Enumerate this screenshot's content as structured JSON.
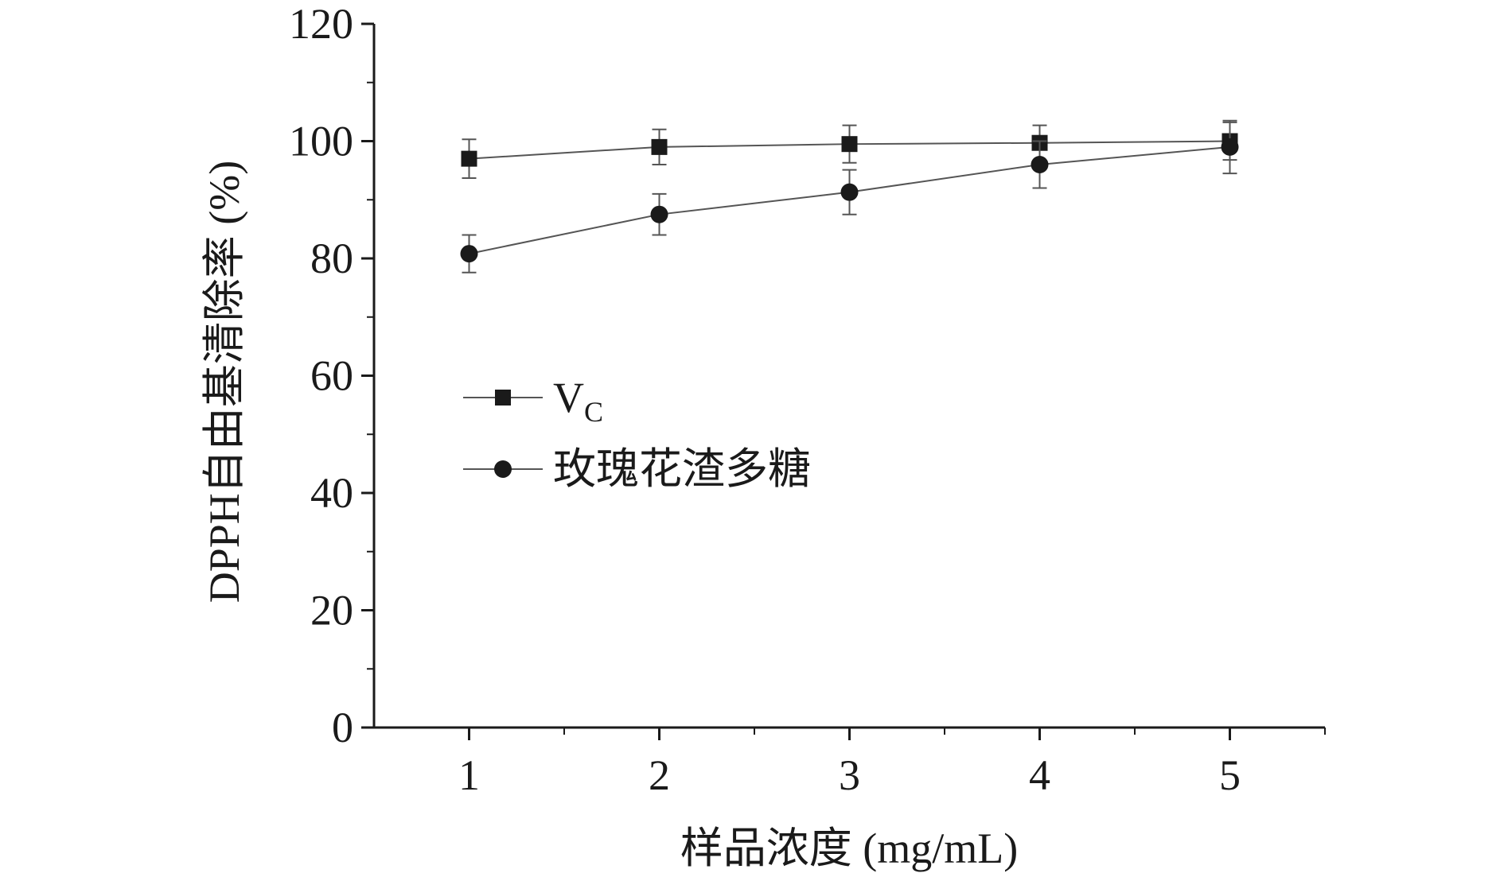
{
  "chart_data": {
    "type": "line",
    "xlabel": "样品浓度 (mg/mL)",
    "ylabel": "DPPH自由基清除率 (%)",
    "x": [
      1,
      2,
      3,
      4,
      5
    ],
    "x_tick_labels": [
      "1",
      "2",
      "3",
      "4",
      "5"
    ],
    "xlim": [
      0.5,
      5.5
    ],
    "ylim": [
      0,
      120
    ],
    "y_ticks": [
      0,
      20,
      40,
      60,
      80,
      100,
      120
    ],
    "y_tick_labels": [
      "0",
      "20",
      "40",
      "60",
      "80",
      "100",
      "120"
    ],
    "grid": false,
    "legend_position": "center-left",
    "series": [
      {
        "name": "V",
        "name_subscript": "C",
        "marker": "square",
        "color": "#1a1a1a",
        "values": [
          97,
          99,
          99.5,
          99.7,
          100
        ],
        "errors": [
          3.3,
          3.0,
          3.2,
          3.0,
          3.2
        ]
      },
      {
        "name": "玫瑰花渣多糖",
        "marker": "circle",
        "color": "#1a1a1a",
        "values": [
          80.8,
          87.5,
          91.3,
          96.0,
          99.0
        ],
        "errors": [
          3.2,
          3.5,
          3.8,
          4.0,
          4.5
        ]
      }
    ]
  }
}
